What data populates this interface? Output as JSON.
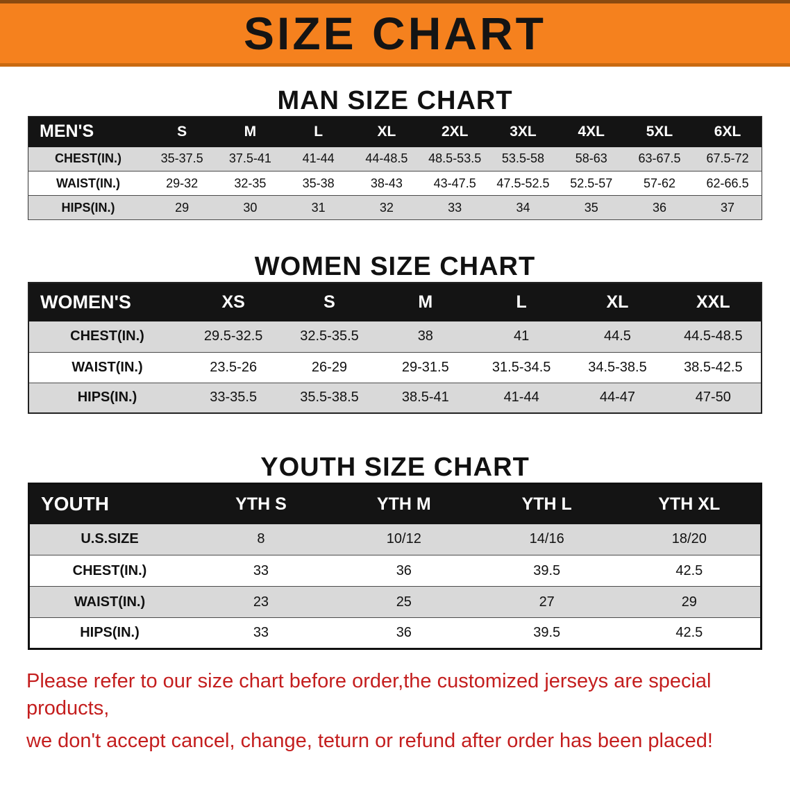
{
  "banner": {
    "title": "SIZE CHART",
    "background_color": "#f5811e",
    "title_color": "#141414"
  },
  "mens": {
    "heading": "MAN SIZE CHART",
    "header": [
      "MEN'S",
      "S",
      "M",
      "L",
      "XL",
      "2XL",
      "3XL",
      "4XL",
      "5XL",
      "6XL"
    ],
    "rows": [
      [
        "CHEST(IN.)",
        "35-37.5",
        "37.5-41",
        "41-44",
        "44-48.5",
        "48.5-53.5",
        "53.5-58",
        "58-63",
        "63-67.5",
        "67.5-72"
      ],
      [
        "WAIST(IN.)",
        "29-32",
        "32-35",
        "35-38",
        "38-43",
        "43-47.5",
        "47.5-52.5",
        "52.5-57",
        "57-62",
        "62-66.5"
      ],
      [
        "HIPS(IN.)",
        "29",
        "30",
        "31",
        "32",
        "33",
        "34",
        "35",
        "36",
        "37"
      ]
    ]
  },
  "womens": {
    "heading": "WOMEN SIZE CHART",
    "header": [
      "WOMEN'S",
      "XS",
      "S",
      "M",
      "L",
      "XL",
      "XXL"
    ],
    "rows": [
      [
        "CHEST(IN.)",
        "29.5-32.5",
        "32.5-35.5",
        "38",
        "41",
        "44.5",
        "44.5-48.5"
      ],
      [
        "WAIST(IN.)",
        "23.5-26",
        "26-29",
        "29-31.5",
        "31.5-34.5",
        "34.5-38.5",
        "38.5-42.5"
      ],
      [
        "HIPS(IN.)",
        "33-35.5",
        "35.5-38.5",
        "38.5-41",
        "41-44",
        "44-47",
        "47-50"
      ]
    ]
  },
  "youth": {
    "heading": "YOUTH SIZE CHART",
    "header": [
      "YOUTH",
      "YTH S",
      "YTH M",
      "YTH L",
      "YTH XL"
    ],
    "rows": [
      [
        "U.S.SIZE",
        "8",
        "10/12",
        "14/16",
        "18/20"
      ],
      [
        "CHEST(IN.)",
        "33",
        "36",
        "39.5",
        "42.5"
      ],
      [
        "WAIST(IN.)",
        "23",
        "25",
        "27",
        "29"
      ],
      [
        "HIPS(IN.)",
        "33",
        "36",
        "39.5",
        "42.5"
      ]
    ]
  },
  "disclaimer": {
    "line1": "Please refer to our size chart before order,the customized jerseys are special products,",
    "line2": "we don't accept cancel, change, teturn or refund after order has been placed!",
    "text_color": "#c41e1e"
  }
}
